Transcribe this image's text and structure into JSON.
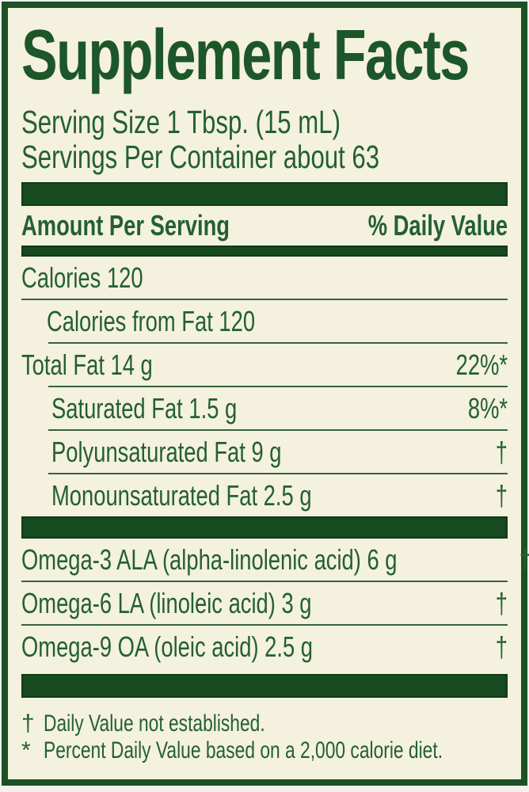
{
  "panel": {
    "title": "Supplement Facts",
    "serving_size": "Serving Size 1 Tbsp. (15 mL)",
    "servings_per_container": "Servings Per Container about 63",
    "columns": {
      "amount": "Amount Per Serving",
      "daily_value": "% Daily Value"
    },
    "body": [
      {
        "type": "row",
        "text": "Calories 120",
        "value": "",
        "indent": 0
      },
      {
        "type": "rule",
        "indent": 0
      },
      {
        "type": "row",
        "text": "Calories from Fat 120",
        "value": "",
        "indent": 32
      },
      {
        "type": "rule",
        "indent": 34
      },
      {
        "type": "row",
        "text": "Total Fat 14 g",
        "value": "22%*",
        "indent": 0
      },
      {
        "type": "rule",
        "indent": 34
      },
      {
        "type": "row",
        "text": "Saturated Fat 1.5 g",
        "value": "8%*",
        "indent": 38
      },
      {
        "type": "rule",
        "indent": 34
      },
      {
        "type": "row",
        "text": "Polyunsaturated Fat 9 g",
        "value": "†",
        "indent": 38
      },
      {
        "type": "rule",
        "indent": 34
      },
      {
        "type": "row",
        "text": "Monounsaturated Fat 2.5 g",
        "value": "†",
        "indent": 38
      },
      {
        "type": "bar",
        "height": 28,
        "mt": 0
      },
      {
        "type": "row",
        "text": "Omega-3 ALA (alpha-linolenic acid) 6 g",
        "value": "†",
        "indent": 0
      },
      {
        "type": "rule",
        "indent": 0
      },
      {
        "type": "row",
        "text": "Omega-6 LA (linoleic acid) 3 g",
        "value": "†",
        "indent": 0
      },
      {
        "type": "rule",
        "indent": 0
      },
      {
        "type": "row",
        "text": "Omega-9 OA (oleic acid) 2.5 g",
        "value": "†",
        "indent": 0
      },
      {
        "type": "bar",
        "height": 30,
        "mt": 8
      }
    ],
    "footnotes": [
      {
        "symbol": "†",
        "text": "Daily Value not established."
      },
      {
        "symbol": "*",
        "text": "Percent Daily Value based on a 2,000 calorie diet."
      }
    ]
  },
  "colors": {
    "page_background": "#f2f2ee",
    "label_background": "#f4f1de",
    "border_green": "#1b5124",
    "bar_green": "#174a1f",
    "bar_outline": "#0e3a15",
    "text_green": "#236030",
    "title_green": "#1d5629",
    "rule_green": "#35643c"
  }
}
